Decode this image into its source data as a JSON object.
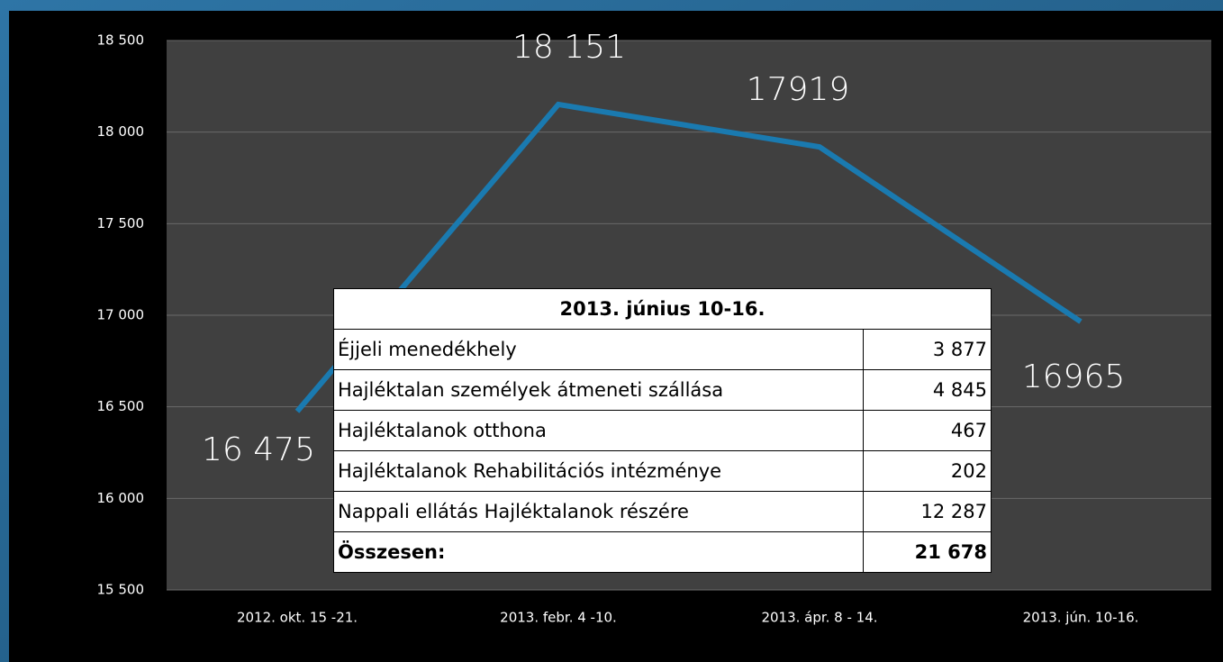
{
  "chart_data": {
    "type": "line",
    "categories": [
      "2012. okt. 15 -21.",
      "2013. febr. 4 -10.",
      "2013. ápr. 8 - 14.",
      "2013. jún. 10-16."
    ],
    "series": [
      {
        "color": "#1a7ab0",
        "values": [
          16475,
          18151,
          17919,
          16965
        ],
        "value_labels": [
          "16 475",
          "18 151",
          "17919",
          "16965"
        ]
      }
    ],
    "ylim": [
      15500,
      18500
    ],
    "yticks": [
      {
        "value": 15500,
        "label": "15 500"
      },
      {
        "value": 16000,
        "label": "16 000"
      },
      {
        "value": 16500,
        "label": "16 500"
      },
      {
        "value": 17000,
        "label": "17 000"
      },
      {
        "value": 17500,
        "label": "17 500"
      },
      {
        "value": 18000,
        "label": "18 000"
      },
      {
        "value": 18500,
        "label": "18 500"
      }
    ],
    "grid": true
  },
  "table": {
    "title": "2013. június 10-16.",
    "rows": [
      [
        "Éjjeli menedékhely",
        "3 877"
      ],
      [
        "Hajléktalan személyek átmeneti szállása",
        "4 845"
      ],
      [
        "Hajléktalanok otthona",
        "467"
      ],
      [
        "Hajléktalanok Rehabilitációs intézménye",
        "202"
      ],
      [
        "Nappali ellátás Hajléktalanok részére",
        "12 287"
      ],
      [
        "Összesen:",
        "21 678"
      ]
    ]
  }
}
